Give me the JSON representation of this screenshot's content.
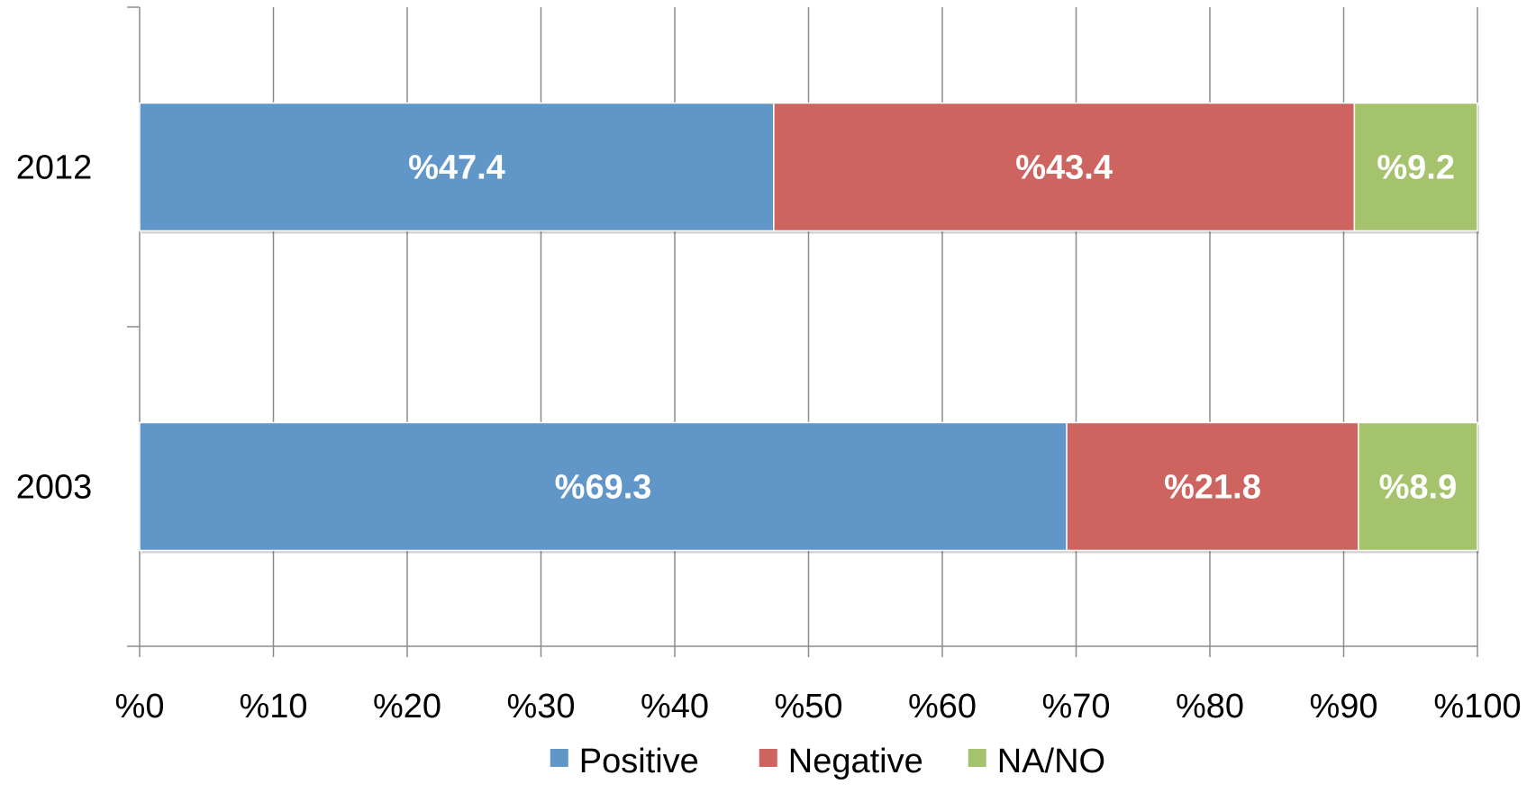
{
  "chart_data": {
    "type": "bar",
    "orientation": "horizontal",
    "stacked": true,
    "categories": [
      "2012",
      "2003"
    ],
    "series": [
      {
        "name": "Positive",
        "color": "#6196c9",
        "values": [
          47.4,
          69.3
        ],
        "labels": [
          "%47.4",
          "%69.3"
        ]
      },
      {
        "name": "Negative",
        "color": "#cd6460",
        "values": [
          43.4,
          21.8
        ],
        "labels": [
          "%43.4",
          "%21.8"
        ]
      },
      {
        "name": "NA/NO",
        "color": "#a5c36d",
        "values": [
          9.2,
          8.9
        ],
        "labels": [
          "%9.2",
          "%8.9"
        ]
      }
    ],
    "xlim": [
      0,
      100
    ],
    "xticks": [
      0,
      10,
      20,
      30,
      40,
      50,
      60,
      70,
      80,
      90,
      100
    ],
    "xtick_labels": [
      "%0",
      "%10",
      "%20",
      "%30",
      "%40",
      "%50",
      "%60",
      "%70",
      "%80",
      "%90",
      "%100"
    ],
    "grid": true,
    "legend_position": "bottom"
  }
}
